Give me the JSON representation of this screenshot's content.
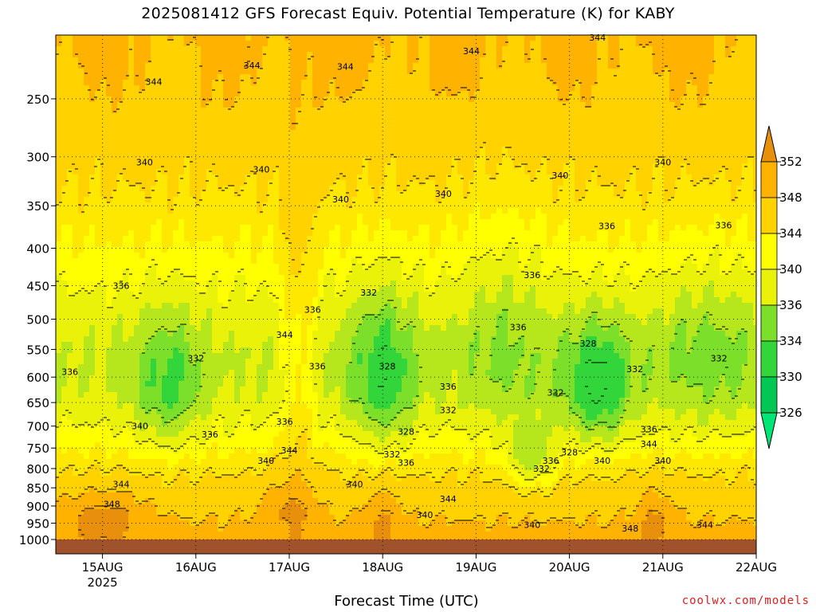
{
  "title": "2025081412 GFS Forecast Equiv. Potential Temperature (K) for KABY",
  "credit": "coolwx.com/models",
  "colors": {
    "ground": "#a0522d",
    "bands": [
      "#00c853",
      "#33d63a",
      "#7ce02a",
      "#b6e61c",
      "#eaf20a",
      "#ffff00",
      "#ffe800",
      "#ffd200",
      "#ffb300",
      "#e8900c"
    ],
    "contour": "#000000"
  },
  "chart_data": {
    "type": "heatmap",
    "title": "2025081412 GFS Forecast Equiv. Potential Temperature (K) for KABY",
    "xlabel": "Forecast Time (UTC)",
    "ylabel": "",
    "x_ticks": [
      "15AUG",
      "16AUG",
      "17AUG",
      "18AUG",
      "19AUG",
      "20AUG",
      "21AUG",
      "22AUG"
    ],
    "x_year": "2025",
    "y_scale": "log-pressure",
    "y_ticks": [
      250,
      300,
      350,
      400,
      450,
      500,
      550,
      600,
      650,
      700,
      750,
      800,
      850,
      900,
      950,
      1000
    ],
    "y_range": [
      1000,
      200
    ],
    "x_range_days": [
      14.5,
      22.0
    ],
    "grid": true,
    "colorbar_levels": [
      326,
      330,
      334,
      336,
      340,
      344,
      348,
      352
    ],
    "colorbar_labels": [
      "352",
      "348",
      "344",
      "340",
      "336",
      "334",
      "330",
      "326"
    ],
    "contour_labels": [
      {
        "t": 15.55,
        "p": 237,
        "v": "344"
      },
      {
        "t": 16.6,
        "p": 225,
        "v": "344"
      },
      {
        "t": 17.6,
        "p": 226,
        "v": "344"
      },
      {
        "t": 18.95,
        "p": 215,
        "v": "344"
      },
      {
        "t": 20.3,
        "p": 206,
        "v": "344"
      },
      {
        "t": 15.45,
        "p": 305,
        "v": "340"
      },
      {
        "t": 16.7,
        "p": 312,
        "v": "340"
      },
      {
        "t": 17.55,
        "p": 343,
        "v": "340"
      },
      {
        "t": 18.65,
        "p": 337,
        "v": "340"
      },
      {
        "t": 19.9,
        "p": 318,
        "v": "340"
      },
      {
        "t": 21.0,
        "p": 305,
        "v": "340"
      },
      {
        "t": 20.4,
        "p": 373,
        "v": "336"
      },
      {
        "t": 21.65,
        "p": 372,
        "v": "336"
      },
      {
        "t": 15.2,
        "p": 450,
        "v": "336"
      },
      {
        "t": 19.6,
        "p": 435,
        "v": "336"
      },
      {
        "t": 19.45,
        "p": 513,
        "v": "336"
      },
      {
        "t": 14.65,
        "p": 590,
        "v": "336"
      },
      {
        "t": 17.3,
        "p": 580,
        "v": "336"
      },
      {
        "t": 18.7,
        "p": 618,
        "v": "336"
      },
      {
        "t": 17.25,
        "p": 485,
        "v": "336"
      },
      {
        "t": 16.15,
        "p": 718,
        "v": "336"
      },
      {
        "t": 16.95,
        "p": 690,
        "v": "336"
      },
      {
        "t": 18.25,
        "p": 785,
        "v": "336"
      },
      {
        "t": 20.85,
        "p": 707,
        "v": "336"
      },
      {
        "t": 19.8,
        "p": 780,
        "v": "336"
      },
      {
        "t": 16.0,
        "p": 565,
        "v": "332"
      },
      {
        "t": 17.85,
        "p": 460,
        "v": "332"
      },
      {
        "t": 18.7,
        "p": 665,
        "v": "332"
      },
      {
        "t": 19.85,
        "p": 630,
        "v": "332"
      },
      {
        "t": 20.7,
        "p": 585,
        "v": "332"
      },
      {
        "t": 21.6,
        "p": 565,
        "v": "332"
      },
      {
        "t": 18.1,
        "p": 765,
        "v": "332"
      },
      {
        "t": 19.7,
        "p": 800,
        "v": "332"
      },
      {
        "t": 20.2,
        "p": 540,
        "v": "328"
      },
      {
        "t": 18.05,
        "p": 580,
        "v": "328"
      },
      {
        "t": 18.25,
        "p": 712,
        "v": "328"
      },
      {
        "t": 20.0,
        "p": 760,
        "v": "328"
      },
      {
        "t": 16.95,
        "p": 525,
        "v": "344"
      },
      {
        "t": 15.4,
        "p": 700,
        "v": "340"
      },
      {
        "t": 16.75,
        "p": 780,
        "v": "340"
      },
      {
        "t": 17.7,
        "p": 840,
        "v": "340"
      },
      {
        "t": 18.45,
        "p": 925,
        "v": "340"
      },
      {
        "t": 19.6,
        "p": 955,
        "v": "340"
      },
      {
        "t": 20.35,
        "p": 780,
        "v": "340"
      },
      {
        "t": 21.0,
        "p": 780,
        "v": "340"
      },
      {
        "t": 15.2,
        "p": 840,
        "v": "344"
      },
      {
        "t": 17.0,
        "p": 755,
        "v": "344"
      },
      {
        "t": 18.7,
        "p": 880,
        "v": "344"
      },
      {
        "t": 20.85,
        "p": 740,
        "v": "344"
      },
      {
        "t": 21.45,
        "p": 955,
        "v": "344"
      },
      {
        "t": 15.1,
        "p": 895,
        "v": "348"
      },
      {
        "t": 20.65,
        "p": 965,
        "v": "348"
      }
    ]
  }
}
